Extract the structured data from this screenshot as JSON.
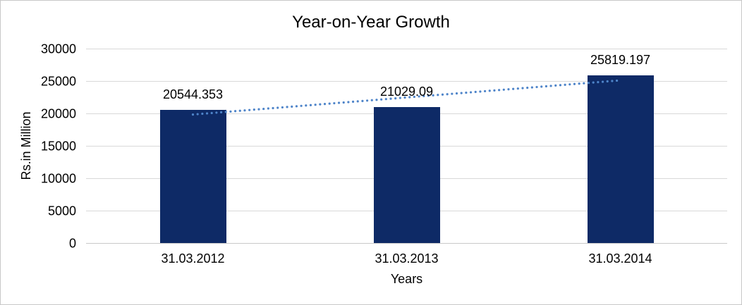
{
  "chart_data": {
    "type": "bar",
    "title": "Year-on-Year Growth",
    "categories": [
      "31.03.2012",
      "31.03.2013",
      "31.03.2014"
    ],
    "values": [
      20544.353,
      21029.09,
      25819.197
    ],
    "data_labels": [
      "20544.353",
      "21029.09",
      "25819.197"
    ],
    "xlabel": "Years",
    "ylabel": "Rs.in Million",
    "ylim": [
      0,
      30000
    ],
    "yticks": [
      0,
      5000,
      10000,
      15000,
      20000,
      25000,
      30000
    ],
    "grid": "horizontal",
    "legend": "none",
    "bar_color": "#0e2a66",
    "gridline_color": "#d9d9d9",
    "trendline": {
      "type": "linear",
      "style": "dotted",
      "color": "#4e84c9"
    }
  }
}
